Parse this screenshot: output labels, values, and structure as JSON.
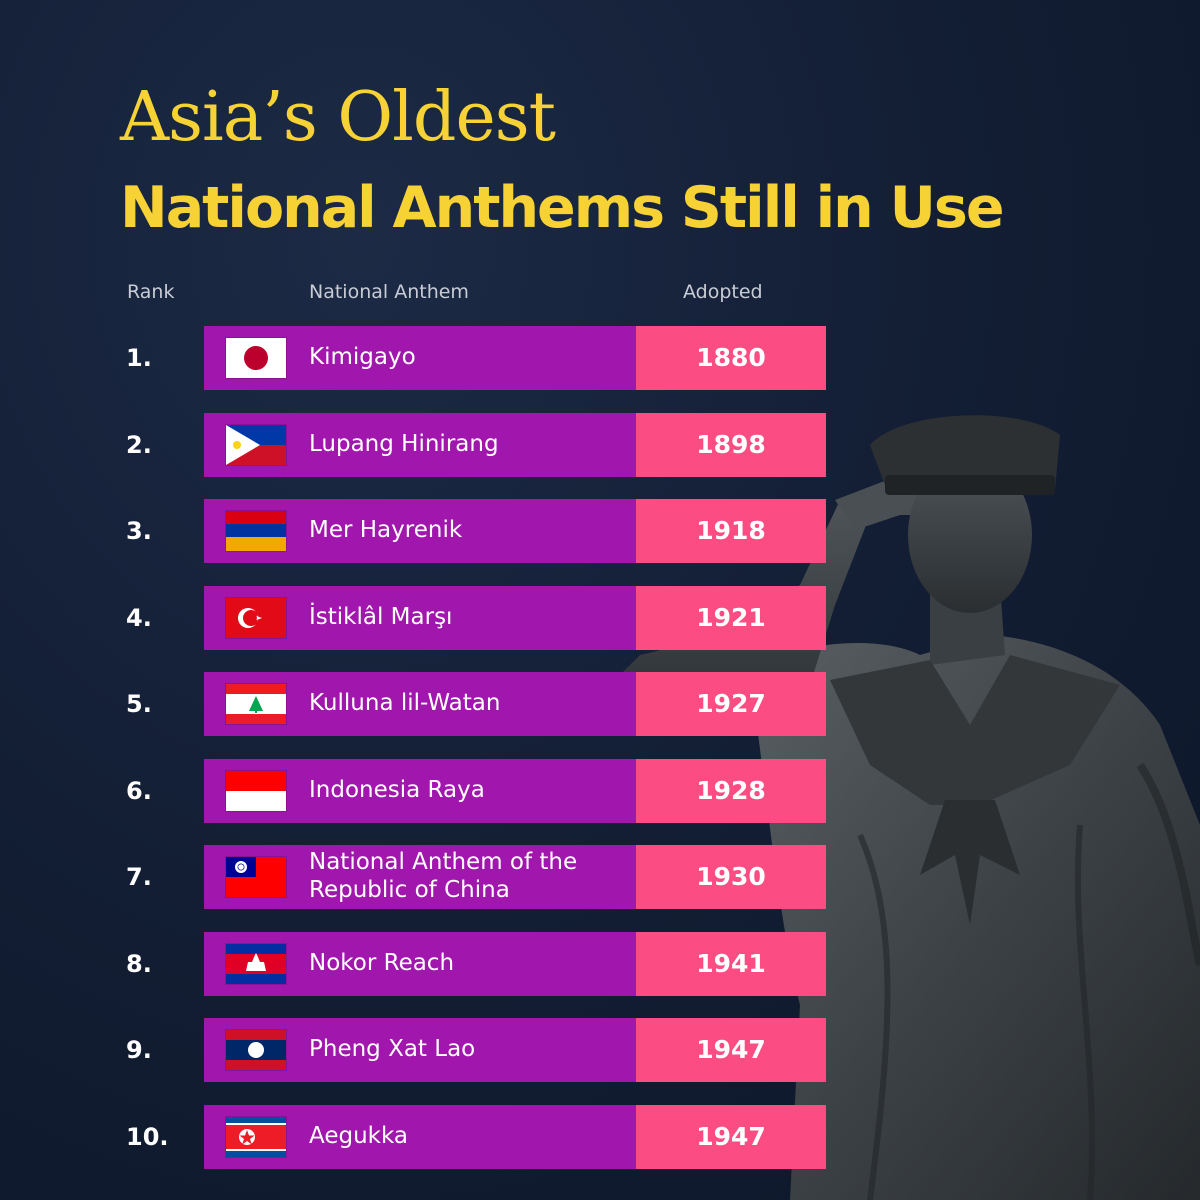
{
  "title": {
    "line1": "Asia’s Oldest",
    "line2": "National Anthems Still in Use"
  },
  "columns": {
    "rank": "Rank",
    "anthem": "National Anthem",
    "adopted": "Adopted"
  },
  "colors": {
    "title": "#f6d234",
    "anthem_cell": "#a117ad",
    "year_cell": "#fb4d83",
    "background": "#121d33"
  },
  "rows": [
    {
      "rank": "1.",
      "anthem": "Kimigayo",
      "year": "1880",
      "flag": "japan-flag-icon"
    },
    {
      "rank": "2.",
      "anthem": "Lupang Hinirang",
      "year": "1898",
      "flag": "philippines-flag-icon"
    },
    {
      "rank": "3.",
      "anthem": "Mer Hayrenik",
      "year": "1918",
      "flag": "armenia-flag-icon"
    },
    {
      "rank": "4.",
      "anthem": "İstiklâl Marşı",
      "year": "1921",
      "flag": "turkey-flag-icon"
    },
    {
      "rank": "5.",
      "anthem": "Kulluna lil-Watan",
      "year": "1927",
      "flag": "lebanon-flag-icon"
    },
    {
      "rank": "6.",
      "anthem": "Indonesia Raya",
      "year": "1928",
      "flag": "indonesia-flag-icon"
    },
    {
      "rank": "7.",
      "anthem": "National Anthem of the Republic of China",
      "year": "1930",
      "flag": "taiwan-flag-icon"
    },
    {
      "rank": "8.",
      "anthem": "Nokor Reach",
      "year": "1941",
      "flag": "cambodia-flag-icon"
    },
    {
      "rank": "9.",
      "anthem": "Pheng Xat Lao",
      "year": "1947",
      "flag": "laos-flag-icon"
    },
    {
      "rank": "10.",
      "anthem": "Aegukka",
      "year": "1947",
      "flag": "north-korea-flag-icon"
    }
  ]
}
